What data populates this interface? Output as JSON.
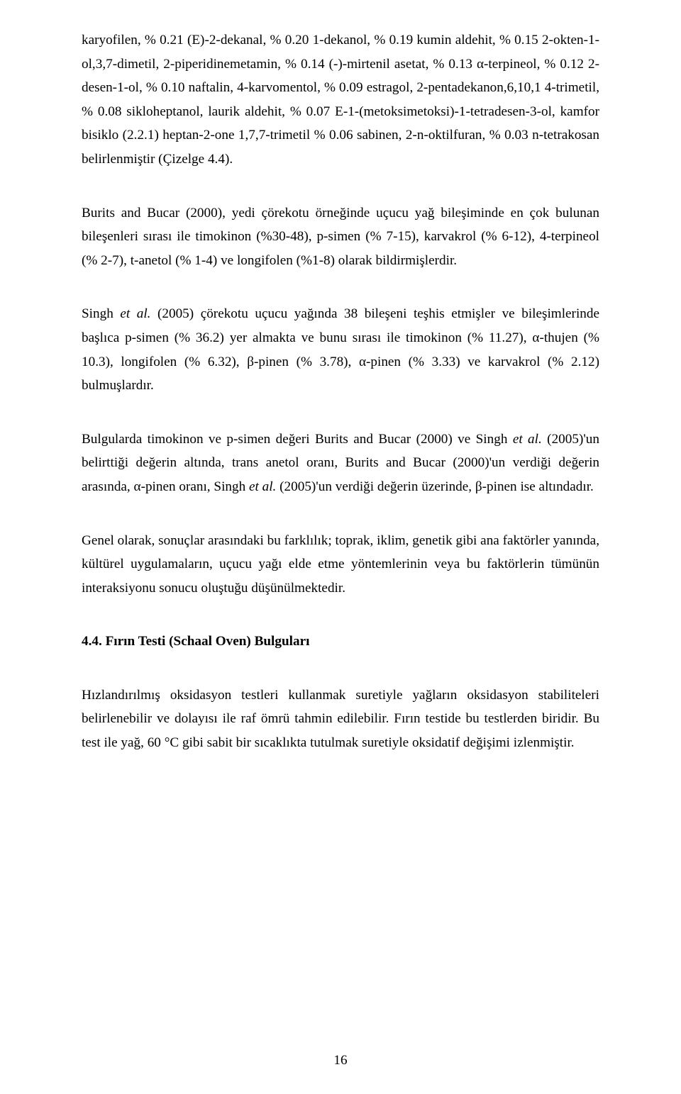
{
  "paragraphs": {
    "p1": "karyofilen, % 0.21 (E)-2-dekanal, % 0.20 1-dekanol, % 0.19 kumin aldehit, % 0.15 2-okten-1-ol,3,7-dimetil, 2-piperidinemetamin, % 0.14 (-)-mirtenil asetat, % 0.13 α-terpineol, % 0.12 2-desen-1-ol, % 0.10 naftalin, 4-karvomentol, % 0.09 estragol, 2-pentadekanon,6,10,1 4-trimetil, % 0.08 sikloheptanol, laurik aldehit, % 0.07 E-1-(metoksimetoksi)-1-tetradesen-3-ol, kamfor bisiklo (2.2.1) heptan-2-one 1,7,7-trimetil % 0.06 sabinen, 2-n-oktilfuran, % 0.03 n-tetrakosan belirlenmiştir (Çizelge 4.4).",
    "p2": "Burits and Bucar (2000), yedi çörekotu örneğinde uçucu yağ bileşiminde en çok bulunan bileşenleri sırası ile timokinon (%30-48), p-simen (% 7-15), karvakrol (% 6-12), 4-terpineol (% 2-7), t-anetol (% 1-4) ve longifolen (%1-8) olarak bildirmişlerdir.",
    "p3_a": "Singh ",
    "p3_b": "et al.",
    "p3_c": " (2005) çörekotu uçucu yağında 38 bileşeni teşhis etmişler ve bileşimlerinde başlıca p-simen (% 36.2) yer almakta ve bunu sırası ile timokinon (% 11.27), α-thujen (% 10.3), longifolen (% 6.32), β-pinen (% 3.78), α-pinen (% 3.33) ve karvakrol (% 2.12) bulmuşlardır.",
    "p4_a": "Bulgularda timokinon ve p-simen değeri Burits and Bucar (2000) ve Singh ",
    "p4_b": "et al.",
    "p4_c": " (2005)'un belirttiği değerin altında, trans anetol oranı, Burits and Bucar (2000)'un verdiği değerin arasında, α-pinen oranı, Singh ",
    "p4_d": "et al.",
    "p4_e": " (2005)'un verdiği değerin üzerinde, β-pinen ise altındadır.",
    "p5": "Genel olarak, sonuçlar arasındaki bu farklılık; toprak, iklim, genetik gibi ana faktörler yanında, kültürel uygulamaların, uçucu yağı elde etme yöntemlerinin veya bu faktörlerin tümünün interaksiyonu sonucu oluştuğu düşünülmektedir.",
    "p6": "Hızlandırılmış oksidasyon testleri kullanmak suretiyle yağların oksidasyon stabiliteleri belirlenebilir ve dolayısı ile raf ömrü tahmin edilebilir. Fırın testide bu testlerden biridir. Bu test ile yağ, 60 °C gibi sabit bir sıcaklıkta tutulmak suretiyle oksidatif değişimi izlenmiştir."
  },
  "heading": "4.4. Fırın Testi (Schaal Oven) Bulguları",
  "page_number": "16"
}
